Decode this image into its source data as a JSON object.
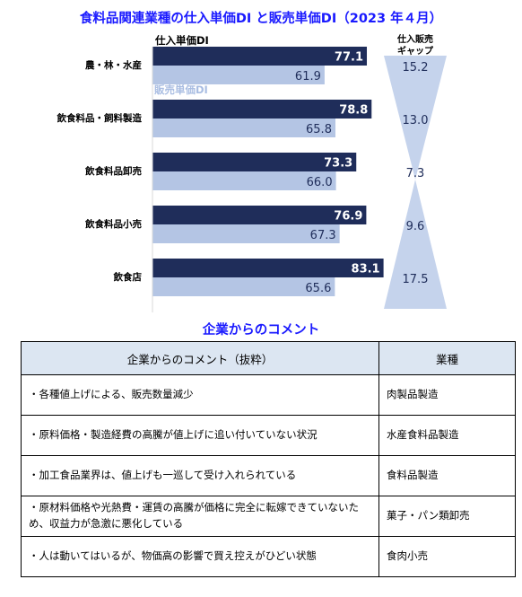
{
  "title": "食料品関連業種の仕入単価DI と販売単価DI（2023 年４月）",
  "legend": {
    "purchase": "仕入単価DI",
    "sale": "販売単価DI"
  },
  "gap_header": [
    "仕入販売",
    "ギャップ"
  ],
  "colors": {
    "purchase": "#1f2d5a",
    "sale": "#b4c5e4",
    "title": "#1a1aff",
    "gap_shape": "#c5d3ec"
  },
  "chart_data": {
    "type": "bar",
    "orientation": "horizontal",
    "title": "食料品関連業種の仕入単価DI と販売単価DI（2023 年４月）",
    "categories": [
      "農・林・水産",
      "飲食料品・飼料製造",
      "飲食料品卸売",
      "飲食料品小売",
      "飲食店"
    ],
    "series": [
      {
        "name": "仕入単価DI",
        "values": [
          77.1,
          78.8,
          73.3,
          76.9,
          83.1
        ]
      },
      {
        "name": "販売単価DI",
        "values": [
          61.9,
          65.8,
          66.0,
          67.3,
          65.6
        ]
      }
    ],
    "gap": {
      "name": "仕入販売ギャップ",
      "values": [
        15.2,
        13.0,
        7.3,
        9.6,
        17.5
      ]
    },
    "xlim": [
      0,
      100
    ]
  },
  "comments": {
    "title": "企業からのコメント",
    "headers": [
      "企業からのコメント（抜粋）",
      "業種"
    ],
    "rows": [
      {
        "text": "・各種値上げによる、販売数量減少",
        "industry": "肉製品製造"
      },
      {
        "text": "・原料価格・製造経費の高騰が値上げに追い付いていない状況",
        "industry": "水産食料品製造"
      },
      {
        "text": "・加工食品業界は、値上げも一巡して受け入れられている",
        "industry": "食料品製造"
      },
      {
        "text": "・原材料価格や光熱費・運賃の高騰が価格に完全に転嫁できていないため、収益力が急激に悪化している",
        "industry": "菓子・パン類卸売"
      },
      {
        "text": "・人は動いてはいるが、物価高の影響で買え控えがひどい状態",
        "industry": "食肉小売"
      }
    ]
  }
}
